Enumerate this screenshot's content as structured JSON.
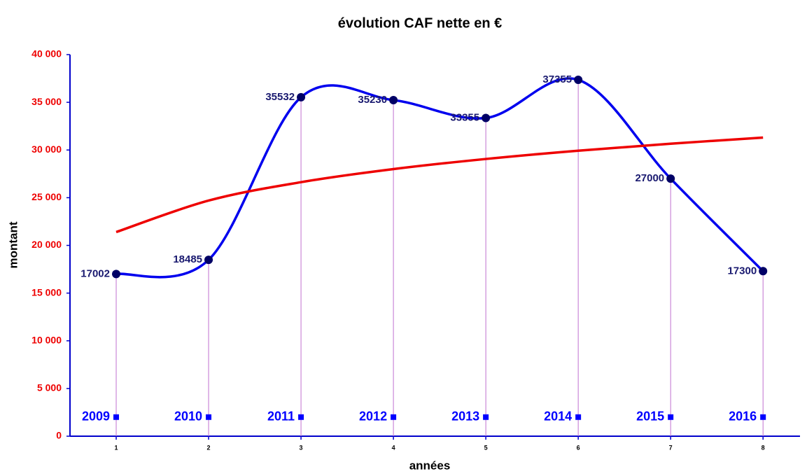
{
  "chart_data": {
    "type": "line",
    "title": "évolution CAF nette en €",
    "xlabel": "années",
    "ylabel": "montant",
    "x": [
      1,
      2,
      3,
      4,
      5,
      6,
      7,
      8
    ],
    "xlim": [
      0.5,
      8.4
    ],
    "xticks": [
      1,
      2,
      3,
      4,
      5,
      6,
      7,
      8
    ],
    "ylim": [
      0,
      40000
    ],
    "yticks": [
      {
        "value": 0,
        "label": "0"
      },
      {
        "value": 5000,
        "label": "5 000"
      },
      {
        "value": 10000,
        "label": "10 000"
      },
      {
        "value": 15000,
        "label": "15 000"
      },
      {
        "value": 20000,
        "label": "20 000"
      },
      {
        "value": 25000,
        "label": "25 000"
      },
      {
        "value": 30000,
        "label": "30 000"
      },
      {
        "value": 35000,
        "label": "35 000"
      },
      {
        "value": 40000,
        "label": "40 000"
      }
    ],
    "series": [
      {
        "color": "#0000ee",
        "smooth": true,
        "markers": true,
        "droplines": true,
        "data_labels": true,
        "values": [
          17002,
          18485,
          35532,
          35230,
          33355,
          37355,
          27000,
          17300
        ]
      },
      {
        "color": "#ee0000",
        "smooth": true,
        "values": [
          21400,
          24700,
          26630,
          28000,
          29060,
          29930,
          30660,
          31300
        ]
      },
      {
        "color": "#0000ff",
        "square_markers": true,
        "values": [
          2000,
          2000,
          2000,
          2000,
          2000,
          2000,
          2000,
          2000
        ],
        "labels": [
          "2009",
          "2010",
          "2011",
          "2012",
          "2013",
          "2014",
          "2015",
          "2016"
        ]
      }
    ]
  }
}
